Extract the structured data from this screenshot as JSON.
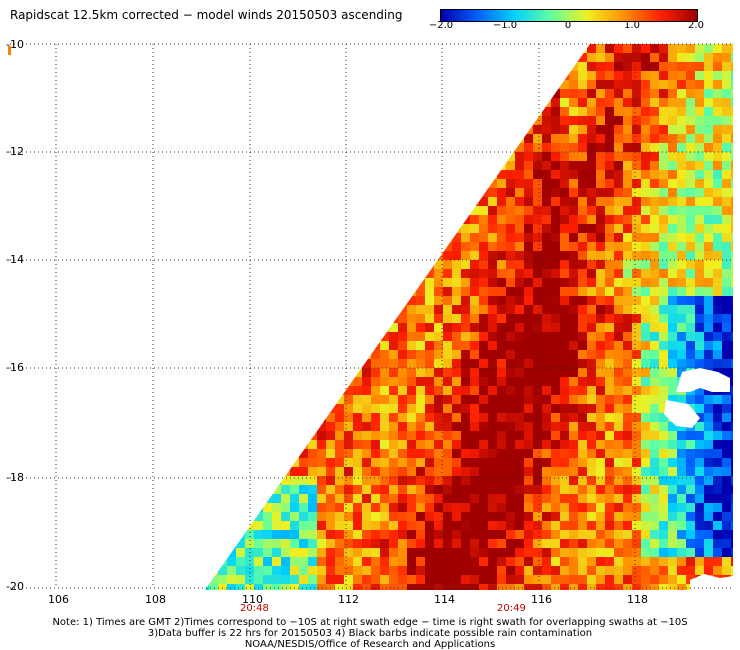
{
  "title": "Rapidscat 12.5km corrected − model winds 20150503 ascending",
  "colorbar": {
    "ticks": [
      "−2.0",
      "−1.0",
      "0",
      "1.0",
      "2.0"
    ],
    "tick_values": [
      -2.0,
      -1.0,
      0,
      1.0,
      2.0
    ],
    "range": [
      -2.0,
      2.0
    ],
    "colors": [
      "#0000b0",
      "#0060ff",
      "#00d0ff",
      "#60ffa0",
      "#f0f020",
      "#ff9000",
      "#ff2000",
      "#a00000"
    ]
  },
  "map": {
    "lat_labels": [
      "-10",
      "-12",
      "-14",
      "-16",
      "-18",
      "-20"
    ],
    "lon_labels": [
      "106",
      "108",
      "110",
      "112",
      "114",
      "116",
      "118"
    ],
    "time_labels": [
      "20:48",
      "20:49"
    ],
    "swath_edge": "diagonal (upper-right to lower-left)",
    "grid": "dotted, every 2 degrees",
    "land_color": "#ffffff"
  },
  "notes": [
    "Note: 1) Times are GMT 2)Times correspond to −10S at right swath edge − time is right swath for overlapping swaths at −10S",
    "3)Data buffer is 22 hrs for 20150503 4) Black barbs indicate possible rain contamination",
    "NOAA/NESDIS/Office of Research and Applications"
  ]
}
